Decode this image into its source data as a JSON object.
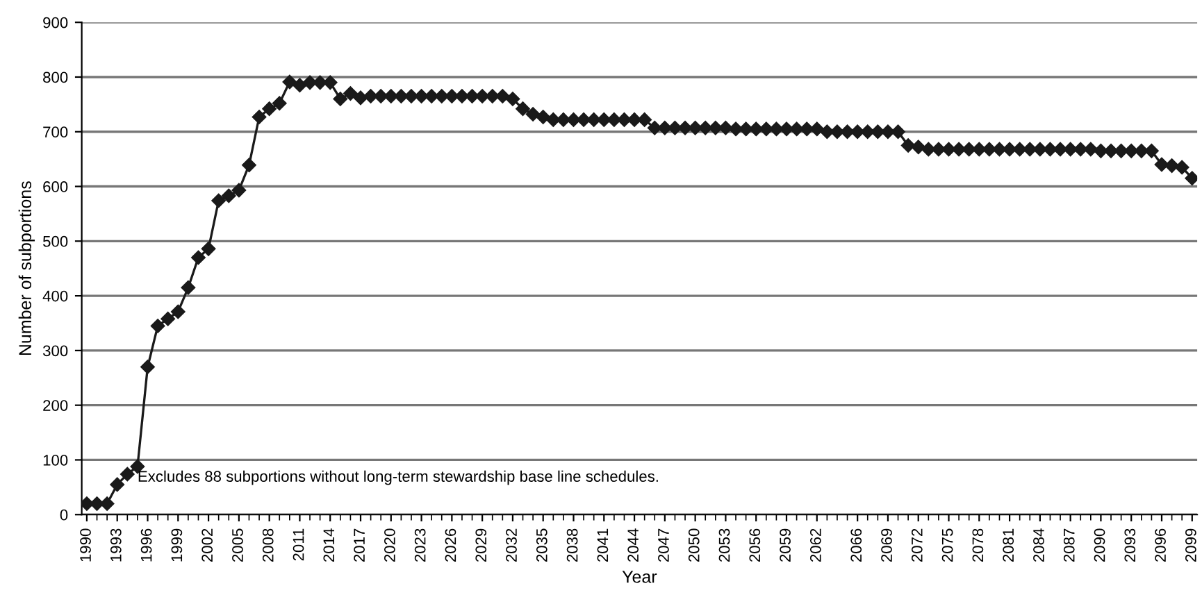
{
  "chart_data": {
    "type": "line",
    "xlabel": "Year",
    "ylabel": "Number of subportions",
    "annotations": [
      "Excludes 88 subportions without long-term stewardship base line schedules."
    ],
    "x": [
      1990,
      1991,
      1992,
      1993,
      1994,
      1995,
      1996,
      1997,
      1998,
      1999,
      2000,
      2001,
      2002,
      2003,
      2004,
      2005,
      2006,
      2007,
      2008,
      2009,
      2010,
      2011,
      2012,
      2013,
      2014,
      2015,
      2016,
      2017,
      2018,
      2019,
      2020,
      2021,
      2022,
      2023,
      2024,
      2025,
      2026,
      2027,
      2028,
      2029,
      2030,
      2031,
      2032,
      2033,
      2034,
      2035,
      2036,
      2037,
      2038,
      2039,
      2040,
      2041,
      2042,
      2043,
      2044,
      2045,
      2046,
      2047,
      2048,
      2049,
      2050,
      2051,
      2052,
      2053,
      2054,
      2055,
      2056,
      2057,
      2058,
      2059,
      2060,
      2061,
      2062,
      2063,
      2064,
      2065,
      2066,
      2067,
      2068,
      2069,
      2070,
      2071,
      2072,
      2073,
      2074,
      2075,
      2076,
      2077,
      2078,
      2079,
      2080,
      2081,
      2082,
      2083,
      2084,
      2085,
      2086,
      2087,
      2088,
      2089,
      2090,
      2091,
      2092,
      2093,
      2094,
      2095,
      2096,
      2097,
      2098,
      2099
    ],
    "series": [
      {
        "color": "#1a1a1a",
        "values": [
          20,
          20,
          20,
          55,
          74,
          88,
          270,
          345,
          358,
          371,
          415,
          470,
          486,
          574,
          583,
          593,
          639,
          727,
          742,
          752,
          791,
          785,
          790,
          790,
          790,
          760,
          770,
          762,
          765,
          765,
          765,
          765,
          765,
          765,
          765,
          765,
          765,
          765,
          765,
          765,
          765,
          765,
          760,
          742,
          732,
          727,
          722,
          722,
          722,
          722,
          722,
          722,
          722,
          722,
          722,
          722,
          707,
          707,
          707,
          707,
          707,
          707,
          707,
          707,
          705,
          705,
          705,
          705,
          705,
          705,
          705,
          705,
          705,
          700,
          700,
          700,
          700,
          700,
          700,
          700,
          700,
          675,
          672,
          668,
          668,
          668,
          668,
          668,
          668,
          668,
          668,
          668,
          668,
          668,
          668,
          668,
          668,
          668,
          668,
          668,
          665,
          665,
          665,
          665,
          665,
          665,
          640,
          638,
          635,
          615
        ]
      }
    ],
    "xlim": [
      1989.5,
      2099.5
    ],
    "xticks": [
      1990,
      1993,
      1996,
      1999,
      2002,
      2005,
      2008,
      2011,
      2014,
      2017,
      2020,
      2023,
      2026,
      2029,
      2032,
      2035,
      2038,
      2041,
      2044,
      2047,
      2050,
      2053,
      2056,
      2059,
      2062,
      2066,
      2069,
      2072,
      2075,
      2078,
      2081,
      2084,
      2087,
      2090,
      2093,
      2096,
      2099
    ],
    "ylim": [
      0,
      900
    ],
    "yticks": [
      0,
      100,
      200,
      300,
      400,
      500,
      600,
      700,
      800,
      900
    ],
    "grid": "y",
    "marker": "diamond",
    "line_style": "solid"
  }
}
